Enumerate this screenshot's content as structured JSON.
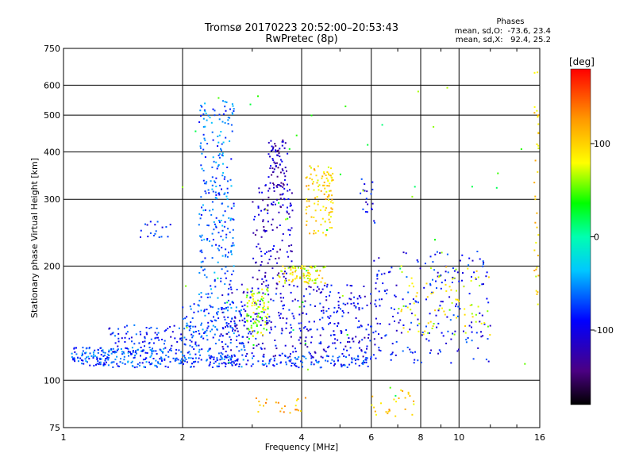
{
  "chart_data": {
    "type": "scatter",
    "title": "Tromsø 20170223 20:52:00–20:53:43",
    "subtitle": "RwPretec (8p)",
    "xlabel": "Frequency [MHz]",
    "ylabel": "Stationary phase Virtual Height [km]",
    "x_scale": "log",
    "y_scale": "log",
    "xlim": [
      1,
      16
    ],
    "ylim": [
      75,
      750
    ],
    "x_ticks": [
      1,
      2,
      4,
      6,
      8,
      10,
      16
    ],
    "y_ticks": [
      75,
      100,
      200,
      300,
      400,
      500,
      600,
      750
    ],
    "grid": true,
    "stats": {
      "heading": "Phases",
      "line_o": "mean, sd,O:  -73.6, 23.4",
      "line_x": "mean, sd,X:   92.4, 25.2"
    },
    "colorbar": {
      "label": "[deg]",
      "range": [
        -180,
        180
      ],
      "ticks": [
        100,
        0,
        -100
      ]
    },
    "clusters": [
      {
        "fmin": 1.05,
        "fmax": 2.0,
        "hmin": 108,
        "hmax": 122,
        "phase": -70,
        "n": 220
      },
      {
        "fmin": 1.3,
        "fmax": 2.2,
        "hmin": 118,
        "hmax": 140,
        "phase": -85,
        "n": 110
      },
      {
        "fmin": 2.2,
        "fmax": 2.7,
        "hmin": 150,
        "hmax": 550,
        "phase": -65,
        "n": 260
      },
      {
        "fmin": 2.0,
        "fmax": 2.9,
        "hmin": 110,
        "hmax": 160,
        "phase": -70,
        "n": 160
      },
      {
        "fmin": 2.0,
        "fmax": 6.0,
        "hmin": 108,
        "hmax": 116,
        "phase": -75,
        "n": 170
      },
      {
        "fmin": 2.5,
        "fmax": 6.0,
        "hmin": 115,
        "hmax": 180,
        "phase": -100,
        "n": 360
      },
      {
        "fmin": 2.9,
        "fmax": 3.3,
        "hmin": 130,
        "hmax": 175,
        "phase": 65,
        "n": 90
      },
      {
        "fmin": 3.0,
        "fmax": 3.8,
        "hmin": 180,
        "hmax": 330,
        "phase": -115,
        "n": 130
      },
      {
        "fmin": 3.3,
        "fmax": 3.7,
        "hmin": 320,
        "hmax": 430,
        "phase": -120,
        "n": 70
      },
      {
        "fmin": 3.5,
        "fmax": 4.6,
        "hmin": 180,
        "hmax": 200,
        "phase": 85,
        "n": 90
      },
      {
        "fmin": 4.1,
        "fmax": 4.8,
        "hmin": 240,
        "hmax": 370,
        "phase": 100,
        "n": 110
      },
      {
        "fmin": 1.55,
        "fmax": 1.9,
        "hmin": 238,
        "hmax": 262,
        "phase": -85,
        "n": 18
      },
      {
        "fmin": 6.0,
        "fmax": 12.0,
        "hmin": 110,
        "hmax": 220,
        "phase": -90,
        "n": 210
      },
      {
        "fmin": 7.0,
        "fmax": 12.0,
        "hmin": 130,
        "hmax": 200,
        "phase": 80,
        "n": 80
      },
      {
        "fmin": 5.6,
        "fmax": 6.2,
        "hmin": 260,
        "hmax": 340,
        "phase": -95,
        "n": 20
      },
      {
        "fmin": 6.0,
        "fmax": 8.0,
        "hmin": 80,
        "hmax": 95,
        "phase": 105,
        "n": 25
      },
      {
        "fmin": 3.0,
        "fmax": 4.3,
        "hmin": 82,
        "hmax": 90,
        "phase": 110,
        "n": 22
      },
      {
        "fmin": 15.5,
        "fmax": 15.9,
        "hmin": 150,
        "hmax": 650,
        "phase": 95,
        "n": 35
      },
      {
        "fmin": 2.0,
        "fmax": 15.0,
        "hmin": 90,
        "hmax": 600,
        "phase": 40,
        "n": 50
      }
    ]
  }
}
